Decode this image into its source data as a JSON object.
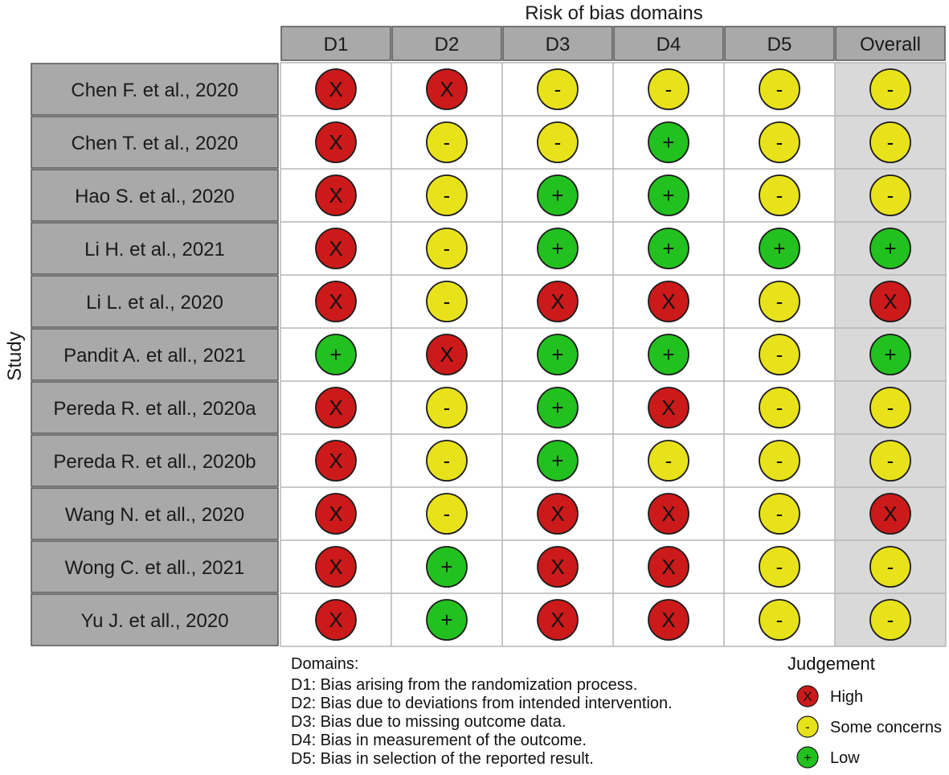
{
  "chart_data": {
    "type": "table",
    "title": "Risk of bias domains",
    "ylabel": "Study",
    "columns": [
      "D1",
      "D2",
      "D3",
      "D4",
      "D5",
      "Overall"
    ],
    "studies": [
      {
        "name": "Chen F. et al., 2020",
        "judgements": [
          "High",
          "High",
          "Some concerns",
          "Some concerns",
          "Some concerns",
          "Some concerns"
        ]
      },
      {
        "name": "Chen T. et al., 2020",
        "judgements": [
          "High",
          "Some concerns",
          "Some concerns",
          "Low",
          "Some concerns",
          "Some concerns"
        ]
      },
      {
        "name": "Hao S. et al., 2020",
        "judgements": [
          "High",
          "Some concerns",
          "Low",
          "Low",
          "Some concerns",
          "Some concerns"
        ]
      },
      {
        "name": "Li H. et al., 2021",
        "judgements": [
          "High",
          "Some concerns",
          "Low",
          "Low",
          "Low",
          "Low"
        ]
      },
      {
        "name": "Li L. et al., 2020",
        "judgements": [
          "High",
          "Some concerns",
          "High",
          "High",
          "Some concerns",
          "High"
        ]
      },
      {
        "name": "Pandit A. et all., 2021",
        "judgements": [
          "Low",
          "High",
          "Low",
          "Low",
          "Some concerns",
          "Low"
        ]
      },
      {
        "name": "Pereda R. et all., 2020a",
        "judgements": [
          "High",
          "Some concerns",
          "Low",
          "High",
          "Some concerns",
          "Some concerns"
        ]
      },
      {
        "name": "Pereda R. et all., 2020b",
        "judgements": [
          "High",
          "Some concerns",
          "Low",
          "Some concerns",
          "Some concerns",
          "Some concerns"
        ]
      },
      {
        "name": "Wang N. et all., 2020",
        "judgements": [
          "High",
          "Some concerns",
          "High",
          "High",
          "Some concerns",
          "High"
        ]
      },
      {
        "name": "Wong C. et all., 2021",
        "judgements": [
          "High",
          "Low",
          "High",
          "High",
          "Some concerns",
          "Some concerns"
        ]
      },
      {
        "name": "Yu J. et all., 2020",
        "judgements": [
          "High",
          "Low",
          "High",
          "High",
          "Some concerns",
          "Some concerns"
        ]
      }
    ],
    "judgement_styles": {
      "High": {
        "symbol": "X",
        "color": "#cc1a1a"
      },
      "Some concerns": {
        "symbol": "-",
        "color": "#e8e21a"
      },
      "Low": {
        "symbol": "+",
        "color": "#22c11f"
      }
    },
    "domains_note": {
      "title": "Domains:",
      "lines": [
        "D1: Bias arising from the randomization process.",
        "D2: Bias due to deviations from intended intervention.",
        "D3: Bias due to missing outcome data.",
        "D4: Bias in measurement of the outcome.",
        "D5: Bias in selection of the reported result."
      ]
    },
    "legend": {
      "title": "Judgement",
      "placement": "bottom-right",
      "items": [
        {
          "label": "High",
          "judgement": "High"
        },
        {
          "label": "Some concerns",
          "judgement": "Some concerns"
        },
        {
          "label": "Low",
          "judgement": "Low"
        }
      ]
    },
    "colors": {
      "header_fill": "#a9a9a9",
      "overall_fill": "#d9d9d9",
      "grid_line": "#b5b5b5",
      "cell_border": "#1a1a1a"
    }
  }
}
